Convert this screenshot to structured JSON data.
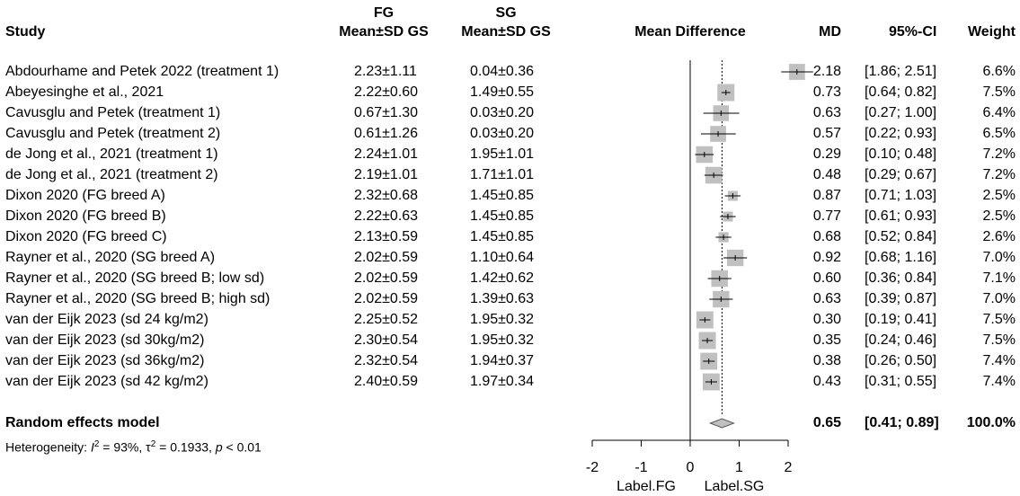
{
  "headers": {
    "study": "Study",
    "fg_top": "FG",
    "fg_bottom": "Mean±SD GS",
    "sg_top": "SG",
    "sg_bottom": "Mean±SD GS",
    "mean_diff": "Mean Difference",
    "md": "MD",
    "ci": "95%-CI",
    "weight": "Weight"
  },
  "studies": [
    {
      "name": "Abdourhame and Petek 2022 (treatment 1)",
      "fg": "2.23±1.11",
      "sg": "0.04±0.36",
      "md_text": "2.18",
      "ci_text": "[1.86; 2.51]",
      "weight_text": "6.6%"
    },
    {
      "name": "Abeyesinghe et al., 2021",
      "fg": "2.22±0.60",
      "sg": "1.49±0.55",
      "md_text": "0.73",
      "ci_text": "[0.64; 0.82]",
      "weight_text": "7.5%"
    },
    {
      "name": "Cavusglu and Petek (treatment 1)",
      "fg": "0.67±1.30",
      "sg": "0.03±0.20",
      "md_text": "0.63",
      "ci_text": "[0.27; 1.00]",
      "weight_text": "6.4%"
    },
    {
      "name": "Cavusglu and Petek (treatment 2)",
      "fg": "0.61±1.26",
      "sg": "0.03±0.20",
      "md_text": "0.57",
      "ci_text": "[0.22; 0.93]",
      "weight_text": "6.5%"
    },
    {
      "name": "de Jong et al., 2021 (treatment 1)",
      "fg": "2.24±1.01",
      "sg": "1.95±1.01",
      "md_text": "0.29",
      "ci_text": "[0.10; 0.48]",
      "weight_text": "7.2%"
    },
    {
      "name": "de Jong et al., 2021 (treatment 2)",
      "fg": "2.19±1.01",
      "sg": "1.71±1.01",
      "md_text": "0.48",
      "ci_text": "[0.29; 0.67]",
      "weight_text": "7.2%"
    },
    {
      "name": "Dixon 2020 (FG breed A)",
      "fg": "2.32±0.68",
      "sg": "1.45±0.85",
      "md_text": "0.87",
      "ci_text": "[0.71; 1.03]",
      "weight_text": "2.5%"
    },
    {
      "name": "Dixon 2020 (FG breed B)",
      "fg": "2.22±0.63",
      "sg": "1.45±0.85",
      "md_text": "0.77",
      "ci_text": "[0.61; 0.93]",
      "weight_text": "2.5%"
    },
    {
      "name": "Dixon 2020 (FG breed C)",
      "fg": "2.13±0.59",
      "sg": "1.45±0.85",
      "md_text": "0.68",
      "ci_text": "[0.52; 0.84]",
      "weight_text": "2.6%"
    },
    {
      "name": "Rayner et al., 2020 (SG breed A)",
      "fg": "2.02±0.59",
      "sg": "1.10±0.64",
      "md_text": "0.92",
      "ci_text": "[0.68; 1.16]",
      "weight_text": "7.0%"
    },
    {
      "name": "Rayner et al., 2020 (SG breed B; low sd)",
      "fg": "2.02±0.59",
      "sg": "1.42±0.62",
      "md_text": "0.60",
      "ci_text": "[0.36; 0.84]",
      "weight_text": "7.1%"
    },
    {
      "name": "Rayner et al., 2020 (SG breed B; high sd)",
      "fg": "2.02±0.59",
      "sg": "1.39±0.63",
      "md_text": "0.63",
      "ci_text": "[0.39; 0.87]",
      "weight_text": "7.0%"
    },
    {
      "name": "van der Eijk 2023 (sd 24 kg/m2)",
      "fg": "2.25±0.52",
      "sg": "1.95±0.32",
      "md_text": "0.30",
      "ci_text": "[0.19; 0.41]",
      "weight_text": "7.5%"
    },
    {
      "name": "van der Eijk 2023 (sd 30kg/m2)",
      "fg": "2.30±0.54",
      "sg": "1.95±0.32",
      "md_text": "0.35",
      "ci_text": "[0.24; 0.46]",
      "weight_text": "7.5%"
    },
    {
      "name": "van der Eijk 2023 (sd 36kg/m2)",
      "fg": "2.32±0.54",
      "sg": "1.94±0.37",
      "md_text": "0.38",
      "ci_text": "[0.26; 0.50]",
      "weight_text": "7.4%"
    },
    {
      "name": "van der Eijk 2023 (sd 42 kg/m2)",
      "fg": "2.40±0.59",
      "sg": "1.97±0.34",
      "md_text": "0.43",
      "ci_text": "[0.31; 0.55]",
      "weight_text": "7.4%"
    }
  ],
  "pooled": {
    "label": "Random effects model",
    "md_text": "0.65",
    "ci_text": "[0.41; 0.89]",
    "weight_text": "100.0%"
  },
  "heterogeneity": {
    "prefix": "Heterogeneity: ",
    "i_symbol": "I",
    "i_sup": "2",
    "i_value": " = 93%, ",
    "tau_symbol": "τ",
    "tau_sup": "2",
    "tau_value": " = 0.1933, ",
    "p_symbol": "p",
    "p_value": " < 0.01"
  },
  "axis": {
    "ticks": [
      -2,
      -1,
      0,
      1,
      2
    ],
    "tick_labels": [
      "-2",
      "-1",
      "0",
      "1",
      "2"
    ],
    "label_left": "Label.FG",
    "label_right": "Label.SG"
  },
  "chart_data": {
    "type": "forest",
    "title": "Mean Difference",
    "xlabel": "",
    "x_range": [
      -2,
      2
    ],
    "null_value": 0,
    "pooled_estimate": 0.65,
    "categories": [
      "Abdourhame and Petek 2022 (treatment 1)",
      "Abeyesinghe et al., 2021",
      "Cavusglu and Petek (treatment 1)",
      "Cavusglu and Petek (treatment 2)",
      "de Jong et al., 2021 (treatment 1)",
      "de Jong et al., 2021 (treatment 2)",
      "Dixon 2020 (FG breed A)",
      "Dixon 2020 (FG breed B)",
      "Dixon 2020 (FG breed C)",
      "Rayner et al., 2020 (SG breed A)",
      "Rayner et al., 2020 (SG breed B; low sd)",
      "Rayner et al., 2020 (SG breed B; high sd)",
      "van der Eijk 2023 (sd 24 kg/m2)",
      "van der Eijk 2023 (sd 30kg/m2)",
      "van der Eijk 2023 (sd 36kg/m2)",
      "van der Eijk 2023 (sd 42 kg/m2)"
    ],
    "md": [
      2.18,
      0.73,
      0.63,
      0.57,
      0.29,
      0.48,
      0.87,
      0.77,
      0.68,
      0.92,
      0.6,
      0.63,
      0.3,
      0.35,
      0.38,
      0.43
    ],
    "ci_lower": [
      1.86,
      0.64,
      0.27,
      0.22,
      0.1,
      0.29,
      0.71,
      0.61,
      0.52,
      0.68,
      0.36,
      0.39,
      0.19,
      0.24,
      0.26,
      0.31
    ],
    "ci_upper": [
      2.51,
      0.82,
      1.0,
      0.93,
      0.48,
      0.67,
      1.03,
      0.93,
      0.84,
      1.16,
      0.84,
      0.87,
      0.41,
      0.46,
      0.5,
      0.55
    ],
    "weight": [
      6.6,
      7.5,
      6.4,
      6.5,
      7.2,
      7.2,
      2.5,
      2.5,
      2.6,
      7.0,
      7.1,
      7.0,
      7.5,
      7.5,
      7.4,
      7.4
    ],
    "pooled": {
      "md": 0.65,
      "ci_lower": 0.41,
      "ci_upper": 0.89,
      "weight": 100.0
    },
    "colors": {
      "box": "#c0c0c0",
      "line": "#000000",
      "diamond": "#c0c0c0"
    }
  }
}
